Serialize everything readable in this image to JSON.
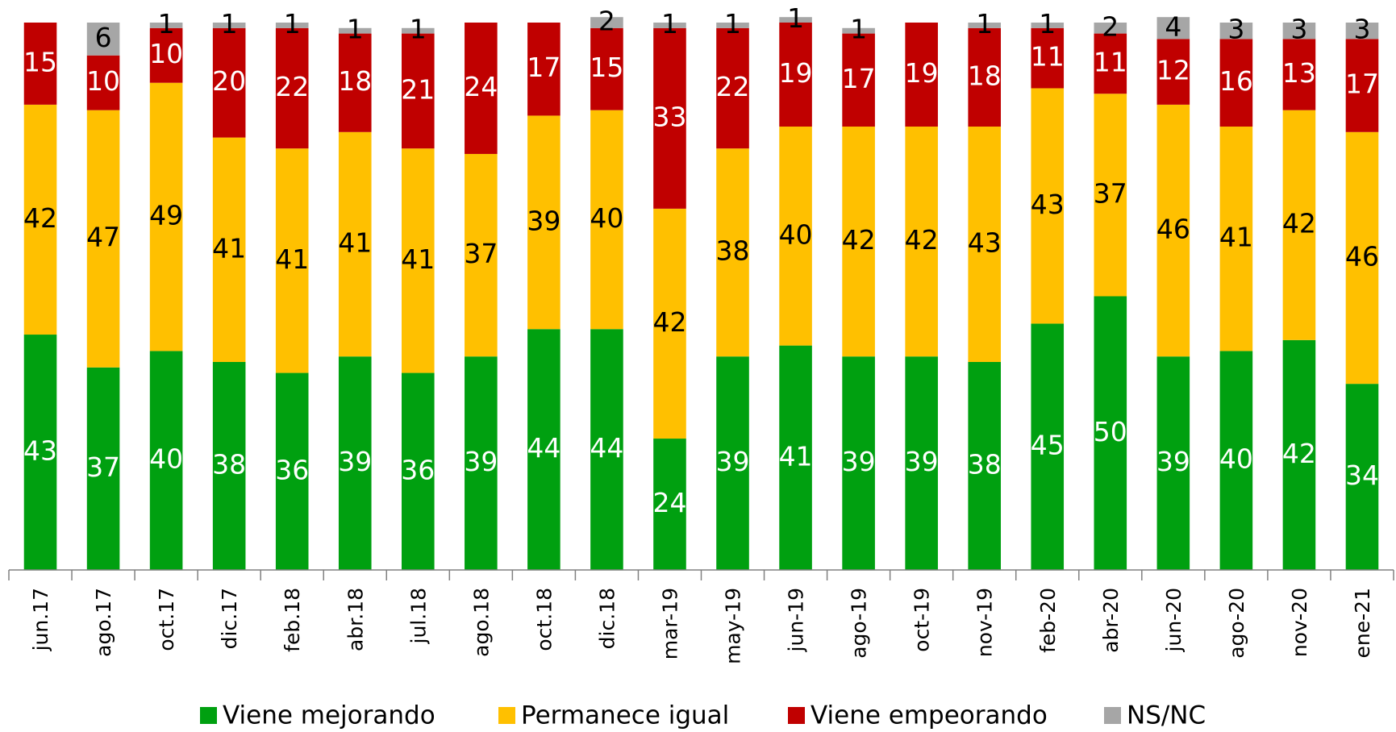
{
  "chart_data": {
    "type": "stacked_bar",
    "categories": [
      "jun.17",
      "ago.17",
      "oct.17",
      "dic.17",
      "feb.18",
      "abr.18",
      "jul.18",
      "ago.18",
      "oct.18",
      "dic.18",
      "mar-19",
      "may-19",
      "jun-19",
      "ago-19",
      "oct-19",
      "nov-19",
      "feb-20",
      "abr-20",
      "jun-20",
      "ago-20",
      "nov-20",
      "ene-21"
    ],
    "series": [
      {
        "name": "Viene mejorando",
        "color": "#00a010",
        "label_color": "#ffffff",
        "values": [
          43,
          37,
          40,
          38,
          36,
          39,
          36,
          39,
          44,
          44,
          24,
          39,
          41,
          39,
          39,
          38,
          45,
          50,
          39,
          40,
          42,
          34
        ]
      },
      {
        "name": "Permanece igual",
        "color": "#ffc000",
        "label_color": "#000000",
        "values": [
          42,
          47,
          49,
          41,
          41,
          41,
          41,
          37,
          39,
          40,
          42,
          38,
          40,
          42,
          42,
          43,
          43,
          37,
          46,
          41,
          42,
          46
        ]
      },
      {
        "name": "Viene empeorando",
        "color": "#c00000",
        "label_color": "#ffffff",
        "values": [
          15,
          10,
          10,
          20,
          22,
          18,
          21,
          24,
          17,
          15,
          33,
          22,
          19,
          17,
          19,
          18,
          11,
          11,
          12,
          16,
          13,
          17
        ]
      },
      {
        "name": "NS/NC",
        "color": "#a6a6a6",
        "label_color": "#000000",
        "values": [
          null,
          6,
          1,
          1,
          1,
          1,
          1,
          null,
          null,
          2,
          1,
          1,
          1,
          1,
          null,
          1,
          1,
          2,
          4,
          3,
          3,
          3
        ]
      }
    ],
    "legend": "bottom"
  }
}
